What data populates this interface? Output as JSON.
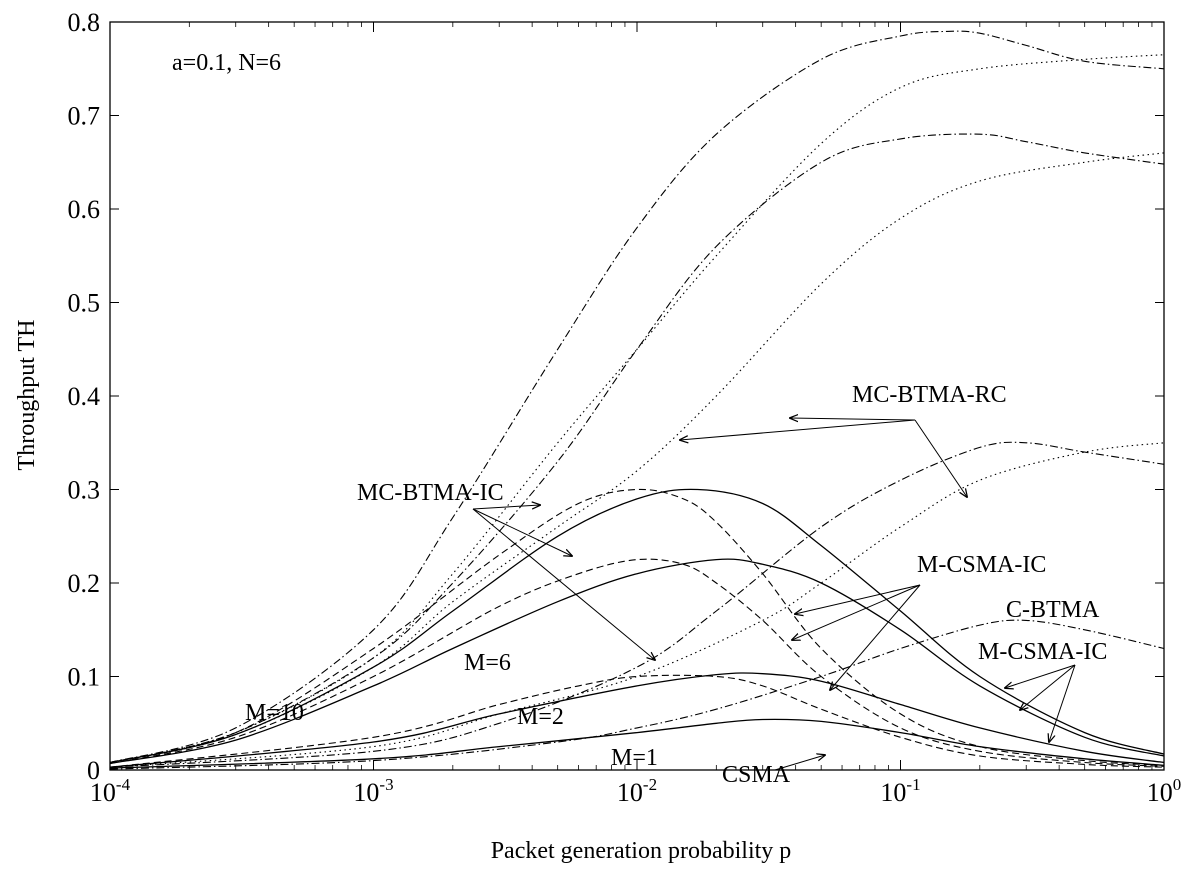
{
  "chart_data": {
    "type": "line",
    "xlabel": "Packet generation probability p",
    "ylabel": "Throughput TH",
    "xscale": "log",
    "xlim": [
      0.0001,
      1
    ],
    "ylim": [
      0,
      0.8
    ],
    "grid": false,
    "x_ticks": [
      {
        "base": "10",
        "exp": "-4",
        "value": 0.0001
      },
      {
        "base": "10",
        "exp": "-3",
        "value": 0.001
      },
      {
        "base": "10",
        "exp": "-2",
        "value": 0.01
      },
      {
        "base": "10",
        "exp": "-1",
        "value": 0.1
      },
      {
        "base": "10",
        "exp": "0",
        "value": 1
      }
    ],
    "y_ticks": [
      "0",
      "0.1",
      "0.2",
      "0.3",
      "0.4",
      "0.5",
      "0.6",
      "0.7",
      "0.8"
    ],
    "annotations": {
      "params": "a=0.1, N=6",
      "mc_btma_rc": "MC-BTMA-RC",
      "mc_btma_ic": "MC-BTMA-IC",
      "m_csma_ic_upper": "M-CSMA-IC",
      "c_btma": "C-BTMA",
      "m_csma_ic_lower": "M-CSMA-IC",
      "csma": "CSMA",
      "m10": "M=10",
      "m6": "M=6",
      "m2": "M=2",
      "m1": "M=1"
    },
    "series": [
      {
        "group": "MC-BTMA-RC",
        "style": "dotted",
        "x": [
          0.0001,
          0.0003,
          0.001,
          0.002,
          0.005,
          0.01,
          0.02,
          0.05,
          0.1,
          0.2,
          0.5,
          1
        ],
        "y": [
          0.008,
          0.04,
          0.12,
          0.21,
          0.35,
          0.45,
          0.55,
          0.67,
          0.73,
          0.75,
          0.76,
          0.765
        ]
      },
      {
        "group": "MC-BTMA-RC",
        "style": "dotted",
        "x": [
          0.0001,
          0.0003,
          0.001,
          0.002,
          0.005,
          0.01,
          0.02,
          0.05,
          0.1,
          0.2,
          0.5,
          1
        ],
        "y": [
          0.008,
          0.038,
          0.11,
          0.18,
          0.26,
          0.32,
          0.4,
          0.52,
          0.59,
          0.63,
          0.65,
          0.66
        ]
      },
      {
        "group": "MC-BTMA-RC",
        "style": "dotted",
        "x": [
          0.0001,
          0.001,
          0.003,
          0.01,
          0.03,
          0.05,
          0.1,
          0.2,
          0.5,
          1
        ],
        "y": [
          0.003,
          0.025,
          0.06,
          0.1,
          0.16,
          0.2,
          0.26,
          0.31,
          0.34,
          0.35
        ]
      },
      {
        "group": "MC-BTMA-IC",
        "style": "dashdot",
        "x": [
          0.0001,
          0.0003,
          0.001,
          0.002,
          0.005,
          0.01,
          0.02,
          0.05,
          0.1,
          0.15,
          0.2,
          0.3,
          0.5,
          1
        ],
        "y": [
          0.008,
          0.045,
          0.15,
          0.27,
          0.45,
          0.58,
          0.68,
          0.76,
          0.785,
          0.79,
          0.788,
          0.775,
          0.758,
          0.75
        ]
      },
      {
        "group": "MC-BTMA-IC",
        "style": "dashdot",
        "x": [
          0.0001,
          0.0003,
          0.001,
          0.002,
          0.005,
          0.01,
          0.02,
          0.05,
          0.1,
          0.2,
          0.3,
          0.5,
          1
        ],
        "y": [
          0.008,
          0.04,
          0.12,
          0.2,
          0.33,
          0.45,
          0.56,
          0.65,
          0.675,
          0.68,
          0.672,
          0.66,
          0.648
        ]
      },
      {
        "group": "MC-BTMA-IC",
        "style": "dashdot",
        "x": [
          0.0001,
          0.001,
          0.003,
          0.01,
          0.02,
          0.05,
          0.1,
          0.2,
          0.3,
          0.5,
          1
        ],
        "y": [
          0.003,
          0.02,
          0.05,
          0.11,
          0.17,
          0.26,
          0.31,
          0.345,
          0.35,
          0.34,
          0.327
        ]
      },
      {
        "group": "C-BTMA",
        "style": "dashdot",
        "x": [
          0.0001,
          0.001,
          0.005,
          0.01,
          0.02,
          0.05,
          0.1,
          0.2,
          0.3,
          0.5,
          1
        ],
        "y": [
          0.001,
          0.01,
          0.03,
          0.045,
          0.065,
          0.1,
          0.13,
          0.155,
          0.16,
          0.15,
          0.13
        ]
      },
      {
        "group": "M-CSMA-IC",
        "style": "solid",
        "label": "M=10",
        "x": [
          0.0001,
          0.0003,
          0.001,
          0.002,
          0.005,
          0.01,
          0.017,
          0.03,
          0.05,
          0.1,
          0.2,
          0.5,
          1
        ],
        "y": [
          0.008,
          0.038,
          0.11,
          0.17,
          0.25,
          0.29,
          0.3,
          0.285,
          0.24,
          0.17,
          0.1,
          0.04,
          0.017
        ]
      },
      {
        "group": "M-CSMA-IC",
        "style": "solid",
        "label": "M=6",
        "x": [
          0.0001,
          0.0003,
          0.001,
          0.002,
          0.005,
          0.01,
          0.02,
          0.03,
          0.05,
          0.1,
          0.2,
          0.5,
          1
        ],
        "y": [
          0.007,
          0.032,
          0.09,
          0.13,
          0.18,
          0.21,
          0.225,
          0.22,
          0.2,
          0.15,
          0.09,
          0.035,
          0.015
        ]
      },
      {
        "group": "M-CSMA-IC",
        "style": "solid",
        "label": "M=2",
        "x": [
          0.0001,
          0.001,
          0.003,
          0.01,
          0.02,
          0.03,
          0.05,
          0.1,
          0.2,
          0.5,
          1
        ],
        "y": [
          0.003,
          0.03,
          0.06,
          0.09,
          0.102,
          0.103,
          0.095,
          0.07,
          0.045,
          0.02,
          0.008
        ]
      },
      {
        "group": "CSMA",
        "style": "solid",
        "label": "M=1",
        "x": [
          0.0001,
          0.001,
          0.003,
          0.01,
          0.02,
          0.03,
          0.05,
          0.1,
          0.2,
          0.5,
          1
        ],
        "y": [
          0.002,
          0.012,
          0.025,
          0.04,
          0.05,
          0.054,
          0.052,
          0.04,
          0.025,
          0.012,
          0.005
        ]
      },
      {
        "group": "M-CSMA",
        "style": "dashed",
        "x": [
          0.0001,
          0.0003,
          0.001,
          0.003,
          0.006,
          0.01,
          0.015,
          0.02,
          0.03,
          0.05,
          0.1,
          0.2,
          0.5,
          1
        ],
        "y": [
          0.008,
          0.04,
          0.13,
          0.23,
          0.285,
          0.3,
          0.29,
          0.265,
          0.21,
          0.13,
          0.06,
          0.025,
          0.01,
          0.005
        ]
      },
      {
        "group": "M-CSMA",
        "style": "dashed",
        "x": [
          0.0001,
          0.0003,
          0.001,
          0.003,
          0.006,
          0.01,
          0.015,
          0.02,
          0.03,
          0.05,
          0.1,
          0.2,
          0.5,
          1
        ],
        "y": [
          0.007,
          0.035,
          0.1,
          0.175,
          0.21,
          0.225,
          0.22,
          0.2,
          0.16,
          0.1,
          0.045,
          0.02,
          0.008,
          0.004
        ]
      },
      {
        "group": "M-CSMA",
        "style": "dashed",
        "x": [
          0.0001,
          0.001,
          0.003,
          0.006,
          0.01,
          0.02,
          0.03,
          0.05,
          0.1,
          0.2,
          0.5,
          1
        ],
        "y": [
          0.003,
          0.035,
          0.07,
          0.09,
          0.1,
          0.1,
          0.09,
          0.065,
          0.035,
          0.015,
          0.006,
          0.003
        ]
      }
    ]
  }
}
